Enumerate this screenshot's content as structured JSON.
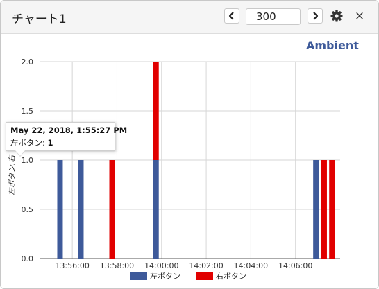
{
  "header": {
    "title": "チャート1",
    "prev_icon": "chevron-left-icon",
    "next_icon": "chevron-right-icon",
    "count_value": "300",
    "settings_icon": "gear-icon",
    "close_label": "×"
  },
  "brand": "Ambient",
  "tooltip": {
    "date": "May 22, 2018, 1:55:27 PM",
    "label": "左ボタン: ",
    "value": "1"
  },
  "colors": {
    "left_series": "#3e5a9a",
    "right_series": "#e10000",
    "grid": "#d6d6d6",
    "axis_text": "#333333"
  },
  "chart_data": {
    "type": "bar",
    "stacked": true,
    "ylabel": "左ボタン,右",
    "ylim": [
      0,
      2.0
    ],
    "yticks": [
      "0.0",
      "0.5",
      "1.0",
      "1.5",
      "2.0"
    ],
    "xticks": [
      "13:56:00",
      "13:58:00",
      "14:00:00",
      "14:02:00",
      "14:04:00",
      "14:06:00"
    ],
    "xrange": [
      "13:55:00",
      "14:08:00"
    ],
    "grid": true,
    "legend_position": "bottom",
    "series": [
      {
        "name": "左ボタン",
        "points": [
          {
            "x": "13:55:27",
            "y": 1
          },
          {
            "x": "13:56:23",
            "y": 1
          },
          {
            "x": "13:59:45",
            "y": 1
          },
          {
            "x": "14:06:55",
            "y": 1
          }
        ]
      },
      {
        "name": "右ボタン",
        "points": [
          {
            "x": "13:57:47",
            "y": 1
          },
          {
            "x": "13:59:45",
            "y": 1
          },
          {
            "x": "14:07:17",
            "y": 1
          },
          {
            "x": "14:07:38",
            "y": 1
          }
        ]
      }
    ]
  }
}
